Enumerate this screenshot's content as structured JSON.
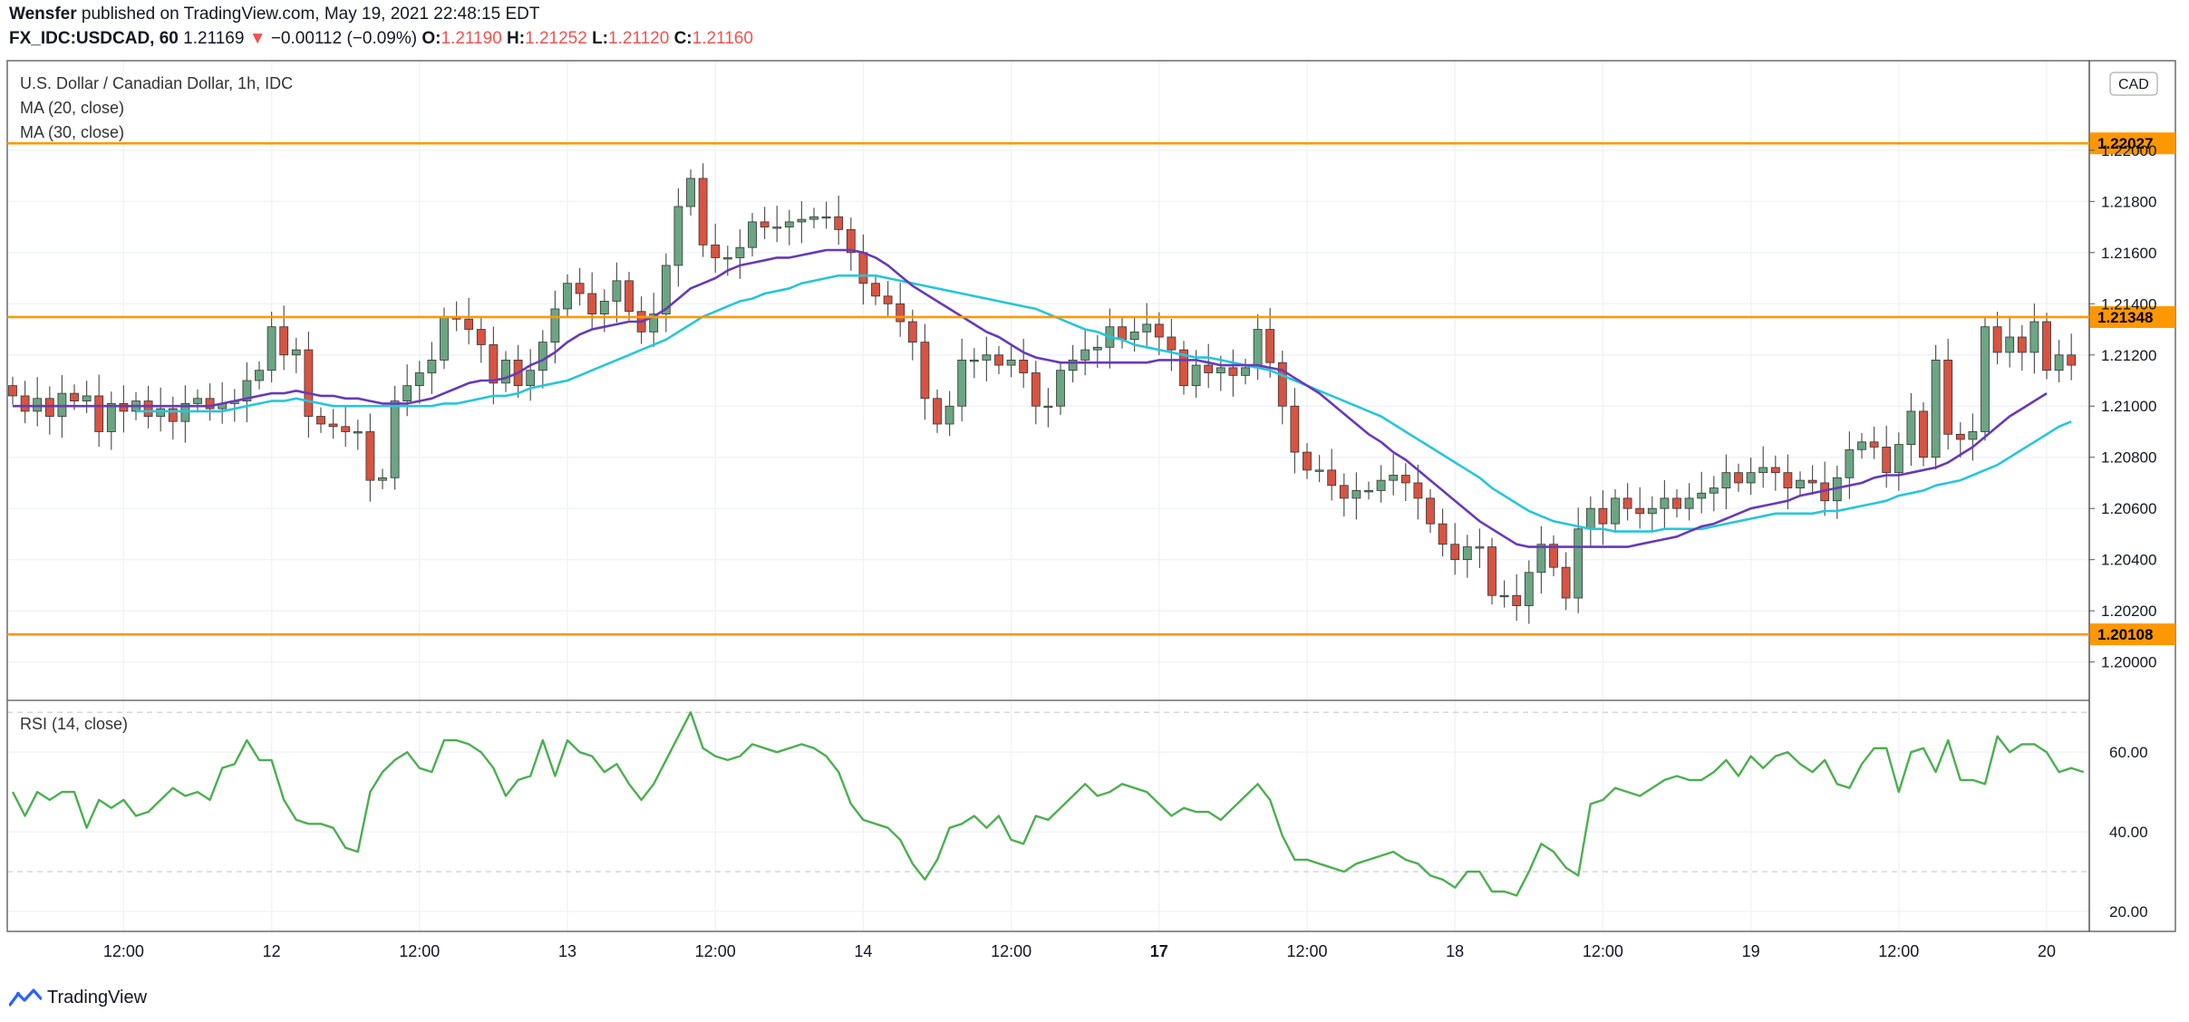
{
  "header": {
    "publisher": "Wensfer",
    "published_text": "published on TradingView.com, May 19, 2021 22:48:15 EDT",
    "symbol": "FX_IDC:USDCAD, 60",
    "last": "1.21169",
    "change_arrow": "▼",
    "change": "−0.00112 (−0.09%)",
    "o_label": "O:",
    "o_value": "1.21190",
    "h_label": "H:",
    "h_value": "1.21252",
    "l_label": "L:",
    "l_value": "1.21120",
    "c_label": "C:",
    "c_value": "1.21160"
  },
  "legend": {
    "title": "U.S. Dollar / Canadian Dollar, 1h, IDC",
    "ma20": "MA (20, close)",
    "ma30": "MA (30, close)",
    "rsi": "RSI (14, close)"
  },
  "footer": {
    "brand": "TradingView"
  },
  "colors": {
    "up": "#6ba583",
    "down": "#d75442",
    "ma20": "#673ab7",
    "ma30": "#26c6da",
    "hline": "#ff9800",
    "rsi": "#4caf50",
    "grid": "#f0f3fa",
    "axis_text": "#131722"
  },
  "chart_data": {
    "type": "candlestick",
    "title": "U.S. Dollar / Canadian Dollar, 1h, IDC",
    "currency": "CAD",
    "price_axis": {
      "ylim": [
        1.1985,
        1.2235
      ],
      "ticks": [
        "1.22000",
        "1.21800",
        "1.21600",
        "1.21400",
        "1.21200",
        "1.21000",
        "1.20800",
        "1.20600",
        "1.20400",
        "1.20200",
        "1.20000"
      ]
    },
    "time_axis": {
      "labels": [
        "12:00",
        "12",
        "12:00",
        "13",
        "12:00",
        "14",
        "12:00",
        "17",
        "12:00",
        "18",
        "12:00",
        "19",
        "12:00",
        "20"
      ],
      "label_bar_index": [
        9,
        21,
        33,
        45,
        57,
        69,
        81,
        93,
        105,
        117,
        129,
        141,
        153,
        165
      ],
      "bold_labels": [
        "17"
      ]
    },
    "horizontal_levels": [
      {
        "label": "1.22027",
        "value": 1.22027
      },
      {
        "label": "1.21348",
        "value": 1.21348
      },
      {
        "label": "1.20108",
        "value": 1.20108
      }
    ],
    "closes": [
      1.2104,
      1.2098,
      1.2103,
      1.2096,
      1.2105,
      1.2102,
      1.2104,
      1.209,
      1.2101,
      1.2098,
      1.2102,
      1.2096,
      1.2099,
      1.2094,
      1.2101,
      1.2103,
      1.2099,
      1.2101,
      1.2102,
      1.211,
      1.2114,
      1.2131,
      1.212,
      1.2122,
      1.2096,
      1.2093,
      1.2092,
      1.209,
      1.209,
      1.2071,
      1.2072,
      1.2102,
      1.2108,
      1.2113,
      1.2118,
      1.2135,
      1.2134,
      1.213,
      1.2124,
      1.2109,
      1.2118,
      1.2108,
      1.2114,
      1.2125,
      1.2138,
      1.2148,
      1.2144,
      1.2136,
      1.2141,
      1.2149,
      1.2137,
      1.2129,
      1.2136,
      1.2155,
      1.2178,
      1.2189,
      1.2163,
      1.2158,
      1.2158,
      1.2162,
      1.2172,
      1.217,
      1.217,
      1.2172,
      1.2173,
      1.2174,
      1.2174,
      1.2169,
      1.216,
      1.2148,
      1.2143,
      1.214,
      1.2133,
      1.2125,
      1.2103,
      1.2093,
      1.21,
      1.2118,
      1.2118,
      1.212,
      1.2116,
      1.2118,
      1.2113,
      1.21,
      1.21,
      1.2114,
      1.2118,
      1.2122,
      1.2123,
      1.2131,
      1.2126,
      1.2129,
      1.2132,
      1.2127,
      1.2122,
      1.2108,
      1.2116,
      1.2113,
      1.2115,
      1.2112,
      1.2115,
      1.213,
      1.2117,
      1.21,
      1.2082,
      1.2075,
      1.2075,
      1.2069,
      1.2064,
      1.2067,
      1.2067,
      1.2071,
      1.2073,
      1.207,
      1.2064,
      1.2054,
      1.2046,
      1.204,
      1.2045,
      1.2045,
      1.2026,
      1.2026,
      1.2022,
      1.2035,
      1.2046,
      1.2037,
      1.2025,
      1.2052,
      1.206,
      1.2054,
      1.2064,
      1.206,
      1.2058,
      1.206,
      1.2064,
      1.206,
      1.2064,
      1.2066,
      1.2068,
      1.2074,
      1.207,
      1.2074,
      1.2076,
      1.2074,
      1.2068,
      1.2071,
      1.207,
      1.2063,
      1.2072,
      1.2083,
      1.2086,
      1.2084,
      1.2074,
      1.2085,
      1.2098,
      1.208,
      1.2118,
      1.2089,
      1.2087,
      1.209,
      1.2131,
      1.2121,
      1.2127,
      1.2121,
      1.2133,
      1.2114,
      1.212,
      1.2116
    ],
    "ma20": [
      1.21,
      1.21,
      1.21,
      1.21,
      1.21,
      1.21,
      1.21,
      1.21,
      1.21,
      1.21,
      1.21,
      1.21,
      1.21,
      1.21,
      1.21,
      1.21,
      1.21,
      1.2101,
      1.2102,
      1.2103,
      1.2104,
      1.2105,
      1.2105,
      1.2106,
      1.2105,
      1.2104,
      1.2104,
      1.2103,
      1.2103,
      1.2102,
      1.2101,
      1.2101,
      1.2101,
      1.2102,
      1.2103,
      1.2105,
      1.2107,
      1.2109,
      1.211,
      1.211,
      1.2111,
      1.2113,
      1.2116,
      1.2118,
      1.2121,
      1.2125,
      1.2128,
      1.213,
      1.2131,
      1.2132,
      1.2133,
      1.2133,
      1.2135,
      1.2138,
      1.2142,
      1.2146,
      1.2148,
      1.215,
      1.2153,
      1.2155,
      1.2156,
      1.2157,
      1.2158,
      1.2158,
      1.2159,
      1.216,
      1.2161,
      1.2161,
      1.2161,
      1.216,
      1.2158,
      1.2155,
      1.2151,
      1.2147,
      1.2144,
      1.2141,
      1.2138,
      1.2135,
      1.2132,
      1.2129,
      1.2127,
      1.2124,
      1.2121,
      1.2119,
      1.2118,
      1.2117,
      1.2117,
      1.2117,
      1.2117,
      1.2117,
      1.2117,
      1.2117,
      1.2117,
      1.2118,
      1.2118,
      1.2118,
      1.2118,
      1.2117,
      1.2116,
      1.2116,
      1.2116,
      1.2116,
      1.2115,
      1.2114,
      1.2111,
      1.2108,
      1.2105,
      1.2101,
      1.2097,
      1.2093,
      1.2089,
      1.2086,
      1.2082,
      1.2079,
      1.2075,
      1.2071,
      1.2067,
      1.2063,
      1.2059,
      1.2055,
      1.2052,
      1.2049,
      1.2046,
      1.2045,
      1.2045,
      1.2045,
      1.2045,
      1.2045,
      1.2045,
      1.2045,
      1.2045,
      1.2045,
      1.2046,
      1.2047,
      1.2048,
      1.2049,
      1.2051,
      1.2053,
      1.2054,
      1.2056,
      1.2058,
      1.206,
      1.2061,
      1.2062,
      1.2063,
      1.2065,
      1.2066,
      1.2067,
      1.2068,
      1.2069,
      1.207,
      1.2072,
      1.2073,
      1.2073,
      1.2074,
      1.2075,
      1.2076,
      1.2078,
      1.2081,
      1.2084,
      1.2088,
      1.2092,
      1.2096,
      1.2099,
      1.2102,
      1.2105
    ],
    "ma30": [
      null,
      null,
      null,
      null,
      null,
      null,
      null,
      null,
      null,
      null,
      1.2098,
      1.2098,
      1.2098,
      1.2098,
      1.2098,
      1.2098,
      1.2098,
      1.2098,
      1.2099,
      1.21,
      1.2101,
      1.2102,
      1.2102,
      1.2103,
      1.2102,
      1.2101,
      1.21,
      1.21,
      1.21,
      1.21,
      1.21,
      1.21,
      1.21,
      1.21,
      1.21,
      1.2101,
      1.2101,
      1.2102,
      1.2103,
      1.2104,
      1.2104,
      1.2105,
      1.2107,
      1.2108,
      1.2109,
      1.211,
      1.2112,
      1.2114,
      1.2116,
      1.2118,
      1.212,
      1.2122,
      1.2124,
      1.2126,
      1.2129,
      1.2132,
      1.2135,
      1.2137,
      1.2139,
      1.2141,
      1.2142,
      1.2144,
      1.2145,
      1.2146,
      1.2148,
      1.2149,
      1.215,
      1.2151,
      1.2151,
      1.2151,
      1.2151,
      1.215,
      1.2149,
      1.2148,
      1.2147,
      1.2146,
      1.2145,
      1.2144,
      1.2143,
      1.2142,
      1.2141,
      1.214,
      1.2139,
      1.2138,
      1.2136,
      1.2134,
      1.2132,
      1.213,
      1.2129,
      1.2127,
      1.2126,
      1.2124,
      1.2123,
      1.2122,
      1.2121,
      1.212,
      1.2119,
      1.2119,
      1.2118,
      1.2117,
      1.2116,
      1.2115,
      1.2114,
      1.2112,
      1.211,
      1.2108,
      1.2106,
      1.2104,
      1.2102,
      1.21,
      1.2098,
      1.2096,
      1.2093,
      1.209,
      1.2087,
      1.2084,
      1.2081,
      1.2078,
      1.2075,
      1.2072,
      1.2068,
      1.2065,
      1.2062,
      1.2059,
      1.2057,
      1.2055,
      1.2054,
      1.2053,
      1.2052,
      1.2052,
      1.2051,
      1.2051,
      1.2051,
      1.2051,
      1.2052,
      1.2052,
      1.2052,
      1.2052,
      1.2053,
      1.2054,
      1.2055,
      1.2056,
      1.2057,
      1.2058,
      1.2058,
      1.2058,
      1.2058,
      1.2059,
      1.2059,
      1.206,
      1.2061,
      1.2062,
      1.2063,
      1.2065,
      1.2066,
      1.2067,
      1.2069,
      1.207,
      1.2071,
      1.2073,
      1.2075,
      1.2077,
      1.208,
      1.2083,
      1.2086,
      1.2089,
      1.2092,
      1.2094
    ],
    "rsi": {
      "name": "RSI (14, close)",
      "ylim": [
        15,
        73
      ],
      "ticks": [
        "60.00",
        "40.00",
        "20.00"
      ],
      "levels": [
        70,
        30
      ],
      "values": [
        50,
        44,
        50,
        48,
        50,
        50,
        41,
        48,
        46,
        48,
        44,
        45,
        48,
        51,
        49,
        50,
        48,
        56,
        57,
        63,
        58,
        58,
        48,
        43,
        42,
        42,
        41,
        36,
        35,
        50,
        55,
        58,
        60,
        56,
        55,
        63,
        63,
        62,
        60,
        56,
        49,
        53,
        54,
        63,
        54,
        63,
        60,
        59,
        55,
        57,
        52,
        48,
        52,
        58,
        64,
        70,
        61,
        59,
        58,
        59,
        62,
        61,
        60,
        61,
        62,
        61,
        59,
        55,
        47,
        43,
        42,
        41,
        38,
        32,
        28,
        33,
        41,
        42,
        44,
        41,
        44,
        38,
        37,
        44,
        43,
        46,
        49,
        52,
        49,
        50,
        52,
        51,
        50,
        47,
        44,
        46,
        45,
        45,
        43,
        46,
        49,
        52,
        48,
        39,
        33,
        33,
        32,
        31,
        30,
        32,
        33,
        34,
        35,
        33,
        32,
        29,
        28,
        26,
        30,
        30,
        25,
        25,
        24,
        30,
        37,
        35,
        31,
        29,
        47,
        48,
        51,
        50,
        49,
        51,
        53,
        54,
        53,
        53,
        55,
        58,
        54,
        59,
        56,
        59,
        60,
        57,
        55,
        58,
        52,
        51,
        57,
        61,
        61,
        50,
        60,
        61,
        55,
        63,
        53,
        53,
        52,
        64,
        60,
        62,
        62,
        60,
        55,
        56,
        55
      ]
    }
  }
}
